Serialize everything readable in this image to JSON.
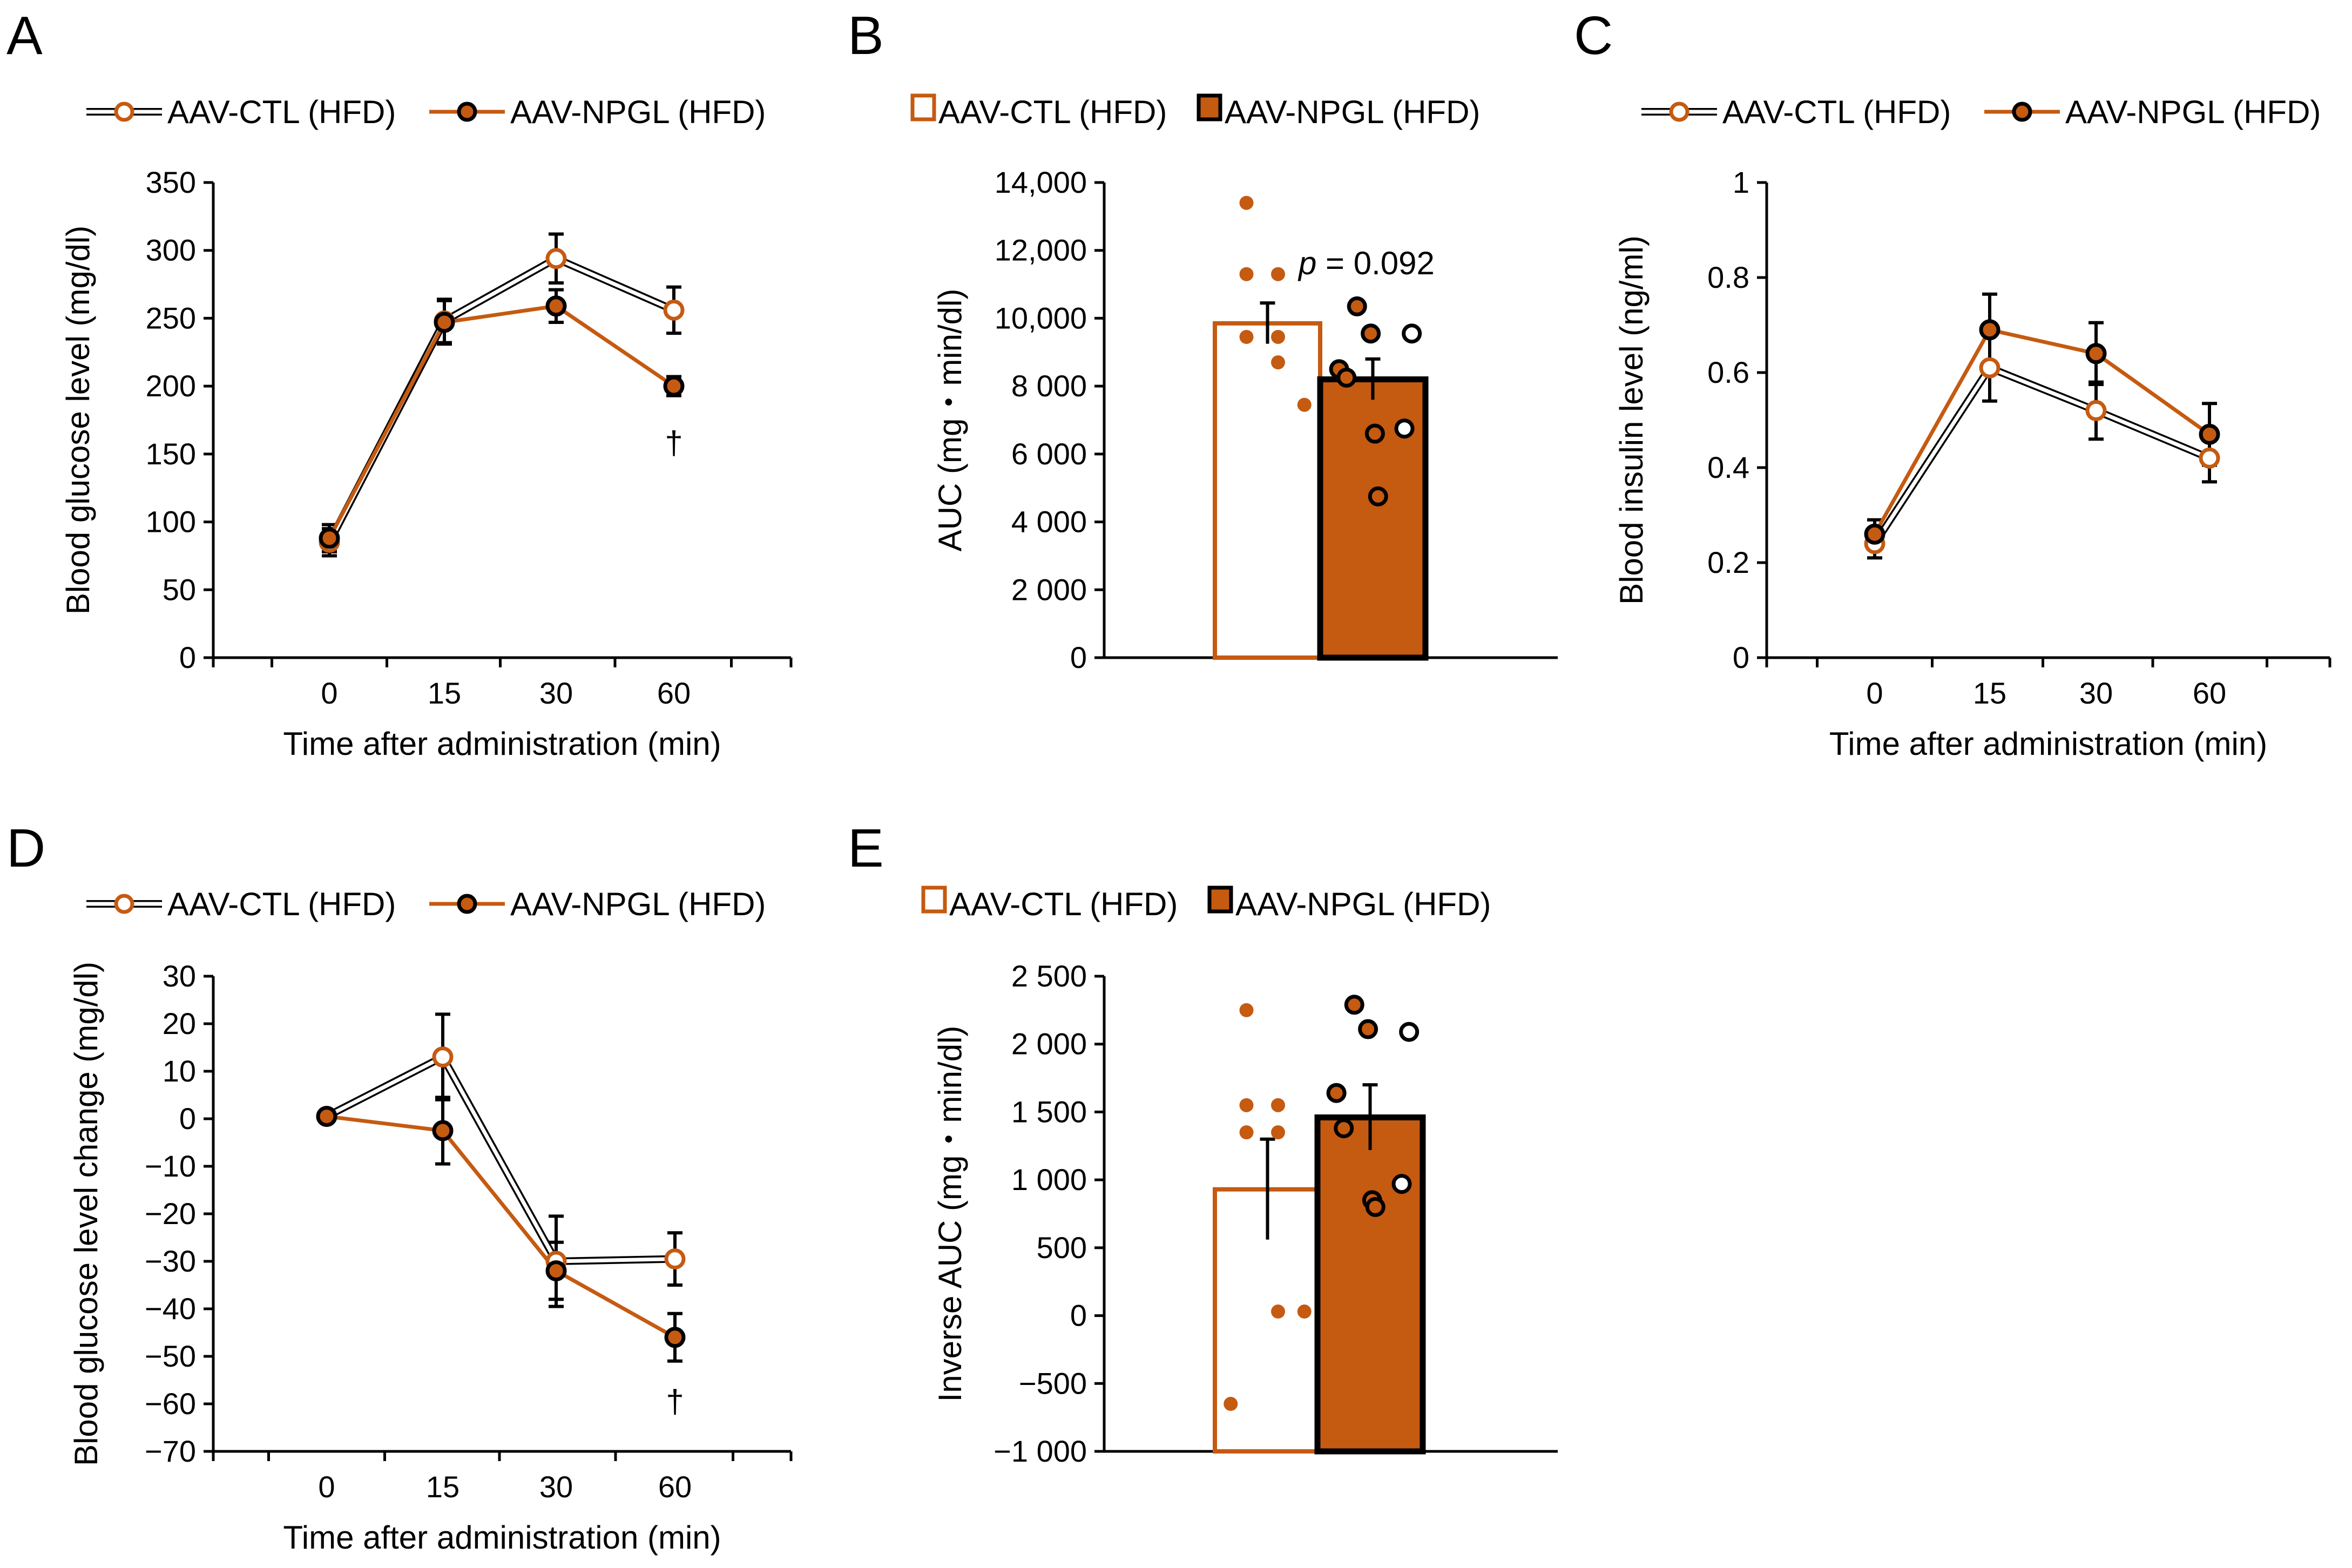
{
  "colors": {
    "orange": "#C55A11",
    "black": "#000000",
    "white": "#ffffff"
  },
  "series_names": [
    "AAV-CTL (HFD)",
    "AAV-NPGL (HFD)"
  ],
  "chart_data": [
    {
      "id": "A",
      "type": "line",
      "letter": "A",
      "xlabel": "Time after administration (min)",
      "ylabel": "Blood glucose level (mg/dl)",
      "categories": [
        "0",
        "15",
        "30",
        "60"
      ],
      "ylim": [
        0,
        350
      ],
      "ystep": 50,
      "yticks": [
        "0",
        "50",
        "100",
        "150",
        "200",
        "250",
        "300",
        "350"
      ],
      "legend": [
        "AAV-CTL (HFD)",
        "AAV-NPGL (HFD)"
      ],
      "series": [
        {
          "name": "AAV-CTL (HFD)",
          "values": [
            85,
            248,
            294,
            256
          ],
          "errors": [
            10,
            16,
            18,
            17
          ]
        },
        {
          "name": "AAV-NPGL (HFD)",
          "values": [
            88,
            247,
            259,
            200
          ],
          "errors": [
            10,
            16,
            12,
            7
          ]
        }
      ],
      "annotations": [
        {
          "text": "†",
          "category": 3,
          "value": 160
        }
      ]
    },
    {
      "id": "B",
      "type": "bar",
      "letter": "B",
      "xlabel": "",
      "ylabel": "AUC (mg・min/dl)",
      "ylim": [
        0,
        14000
      ],
      "ystep": 2000,
      "yticks": [
        "0",
        "2 000",
        "4 000",
        "6 000",
        "8 000",
        "10,000",
        "12,000",
        "14,000"
      ],
      "legend": [
        "AAV-CTL (HFD)",
        "AAV-NPGL (HFD)"
      ],
      "series": [
        {
          "name": "AAV-CTL (HFD)",
          "value": 9850,
          "error": 600,
          "points": [
            13400,
            11300,
            11300,
            9450,
            9450,
            8700,
            7450
          ]
        },
        {
          "name": "AAV-NPGL (HFD)",
          "value": 8200,
          "error": 600,
          "points": [
            10350,
            9550,
            9550,
            8500,
            8250,
            6750,
            6600,
            4750
          ]
        }
      ],
      "p_prefix": "p",
      "p_text": " = 0.092"
    },
    {
      "id": "C",
      "type": "line",
      "letter": "C",
      "xlabel": "Time after administration (min)",
      "ylabel": "Blood insulin level (ng/ml)",
      "categories": [
        "0",
        "15",
        "30",
        "60"
      ],
      "ylim": [
        0,
        1
      ],
      "ystep": 0.2,
      "yticks": [
        "0",
        "0.2",
        "0.4",
        "0.6",
        "0.8",
        "1"
      ],
      "legend": [
        "AAV-CTL (HFD)",
        "AAV-NPGL (HFD)"
      ],
      "series": [
        {
          "name": "AAV-CTL (HFD)",
          "values": [
            0.24,
            0.61,
            0.52,
            0.42
          ],
          "errors": [
            0.03,
            0.07,
            0.06,
            0.05
          ]
        },
        {
          "name": "AAV-NPGL (HFD)",
          "values": [
            0.26,
            0.69,
            0.64,
            0.47
          ],
          "errors": [
            0.03,
            0.075,
            0.065,
            0.065
          ]
        }
      ],
      "annotations": []
    },
    {
      "id": "D",
      "type": "line",
      "letter": "D",
      "xlabel": "Time after administration (min)",
      "ylabel": "Blood glucose level change (mg/dl)",
      "categories": [
        "0",
        "15",
        "30",
        "60"
      ],
      "ylim": [
        -70,
        30
      ],
      "ystep": 10,
      "yticks": [
        "−70",
        "−60",
        "−50",
        "−40",
        "−30",
        "−20",
        "−10",
        "0",
        "10",
        "20",
        "30"
      ],
      "legend": [
        "AAV-CTL (HFD)",
        "AAV-NPGL (HFD)"
      ],
      "series": [
        {
          "name": "AAV-CTL (HFD)",
          "values": [
            0.5,
            13,
            -30,
            -29.5
          ],
          "errors": [
            0.5,
            9,
            9.5,
            5.5
          ]
        },
        {
          "name": "AAV-NPGL (HFD)",
          "values": [
            0.5,
            -2.5,
            -32,
            -46
          ],
          "errors": [
            0.5,
            7,
            6,
            5
          ]
        }
      ],
      "annotations": [
        {
          "text": "†",
          "category": 3,
          "value": -59
        }
      ]
    },
    {
      "id": "E",
      "type": "bar",
      "letter": "E",
      "xlabel": "",
      "ylabel": "Inverse AUC (mg・min/dl)",
      "ylim": [
        -1000,
        2500
      ],
      "ystep": 500,
      "yticks": [
        "−1 000",
        "−500",
        "0",
        "500",
        "1 000",
        "1 500",
        "2 000",
        "2 500"
      ],
      "legend": [
        "AAV-CTL (HFD)",
        "AAV-NPGL (HFD)"
      ],
      "series": [
        {
          "name": "AAV-CTL (HFD)",
          "value": 930,
          "error": 370,
          "points": [
            2250,
            1550,
            1550,
            1350,
            1350,
            30,
            30,
            -650
          ]
        },
        {
          "name": "AAV-NPGL (HFD)",
          "value": 1460,
          "error": 240,
          "points": [
            2290,
            2110,
            2090,
            1640,
            1380,
            970,
            850,
            800
          ]
        }
      ]
    }
  ]
}
